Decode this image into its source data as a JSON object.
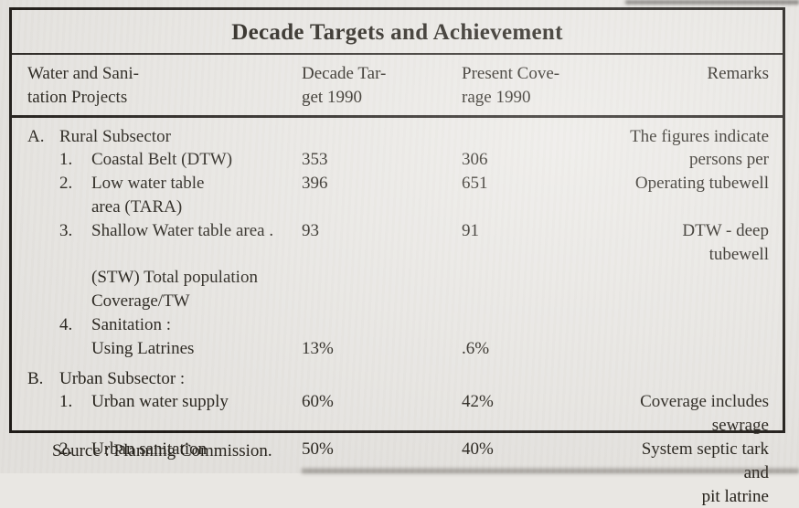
{
  "title": "Decade Targets and Achievement",
  "columns": {
    "projects_line1": "Water and Sani-",
    "projects_line2": "tation Projects",
    "target_line1": "Decade Tar-",
    "target_line2": "get 1990",
    "coverage_line1": "Present Cove-",
    "coverage_line2": "rage 1990",
    "remarks": "Remarks"
  },
  "rows": [
    {
      "m1": "A.",
      "m2": "",
      "label": "Rural Subsector",
      "target": "",
      "present": "",
      "remark": "The figures indicate",
      "level": 1,
      "gap_before": false
    },
    {
      "m1": "",
      "m2": "1.",
      "label": "Coastal Belt (DTW)",
      "target": "353",
      "present": "306",
      "remark": "persons per",
      "level": 2,
      "gap_before": false
    },
    {
      "m1": "",
      "m2": "2.",
      "label": "Low water table",
      "target": "396",
      "present": "651",
      "remark": "Operating tubewell",
      "level": 2,
      "gap_before": false
    },
    {
      "m1": "",
      "m2": "",
      "label": "area (TARA)",
      "target": "",
      "present": "",
      "remark": "",
      "level": 2,
      "gap_before": false
    },
    {
      "m1": "",
      "m2": "3.",
      "label": "Shallow Water table area .",
      "target": "93",
      "present": "91",
      "remark": "DTW - deep tubewell",
      "level": 2,
      "gap_before": false
    },
    {
      "m1": "",
      "m2": "",
      "label": "(STW) Total population",
      "target": "",
      "present": "",
      "remark": "",
      "level": 2,
      "gap_before": false
    },
    {
      "m1": "",
      "m2": "",
      "label": "Coverage/TW",
      "target": "",
      "present": "",
      "remark": "",
      "level": 2,
      "gap_before": false
    },
    {
      "m1": "",
      "m2": "4.",
      "label": "Sanitation :",
      "target": "",
      "present": "",
      "remark": "",
      "level": 2,
      "gap_before": false
    },
    {
      "m1": "",
      "m2": "",
      "label": "Using Latrines",
      "target": "13%",
      "present": ".6%",
      "remark": "",
      "level": 2,
      "gap_before": false
    },
    {
      "m1": "B.",
      "m2": "",
      "label": "Urban Subsector :",
      "target": "",
      "present": "",
      "remark": "",
      "level": 1,
      "gap_before": true
    },
    {
      "m1": "",
      "m2": "1.",
      "label": "Urban water supply",
      "target": "60%",
      "present": "42%",
      "remark": "Coverage includes sewrage",
      "level": 2,
      "gap_before": false
    },
    {
      "m1": "",
      "m2": "2.",
      "label": "Urban sanitation",
      "target": "50%",
      "present": "40%",
      "remark": "System septic tark and",
      "level": 2,
      "gap_before": false
    },
    {
      "m1": "",
      "m2": "",
      "label": "",
      "target": "",
      "present": "",
      "remark": "pit latrine",
      "level": 2,
      "gap_before": false
    }
  ],
  "source": "Source : Planning Commission.",
  "colors": {
    "paper": "#e9e7e3",
    "ink": "#242019",
    "border": "#1d1915"
  }
}
